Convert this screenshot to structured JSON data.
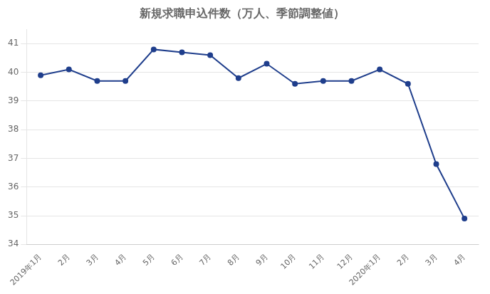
{
  "chart_data": {
    "type": "line",
    "title": "新規求職申込件数（万人、季節調整値）",
    "categories": [
      "2019年1月",
      "2月",
      "3月",
      "4月",
      "5月",
      "6月",
      "7月",
      "8月",
      "9月",
      "10月",
      "11月",
      "12月",
      "2020年1月",
      "2月",
      "3月",
      "4月"
    ],
    "values": [
      39.9,
      40.1,
      39.7,
      39.7,
      40.8,
      40.7,
      40.6,
      39.8,
      40.3,
      39.6,
      39.7,
      39.7,
      40.1,
      39.6,
      36.8,
      34.9
    ],
    "color": "#1F3E8C",
    "marker": "circle",
    "ylim": [
      34,
      41.5
    ],
    "yticks": [
      34,
      35,
      36,
      37,
      38,
      39,
      40,
      41
    ],
    "grid": "y"
  }
}
